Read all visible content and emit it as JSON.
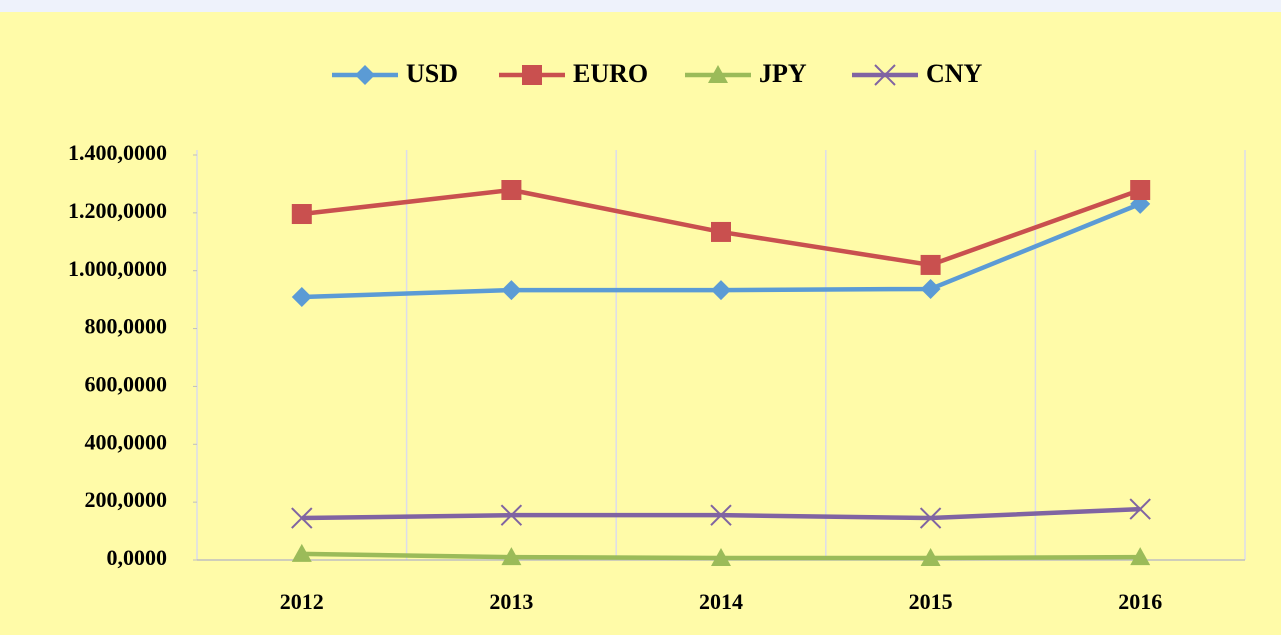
{
  "chart_data": {
    "type": "line",
    "categories": [
      "2012",
      "2013",
      "2014",
      "2015",
      "2016"
    ],
    "series": [
      {
        "name": "USD",
        "color": "#5b9bd5",
        "marker": "diamond",
        "values": [
          909,
          933,
          933,
          937,
          1231
        ]
      },
      {
        "name": "EURO",
        "color": "#c9504f",
        "marker": "square",
        "values": [
          1196,
          1279,
          1134,
          1020,
          1279
        ]
      },
      {
        "name": "JPY",
        "color": "#9bbb59",
        "marker": "triangle",
        "values": [
          21,
          10,
          7,
          7,
          10
        ]
      },
      {
        "name": "CNY",
        "color": "#8064a2",
        "marker": "x",
        "values": [
          145,
          155,
          155,
          145,
          176
        ]
      }
    ],
    "ylim": [
      0,
      1400
    ],
    "yticks": [
      {
        "value": 0,
        "label": "0,0000"
      },
      {
        "value": 200,
        "label": "200,0000"
      },
      {
        "value": 400,
        "label": "400,0000"
      },
      {
        "value": 600,
        "label": "600,0000"
      },
      {
        "value": 800,
        "label": "800,0000"
      },
      {
        "value": 1000,
        "label": "1.000,0000"
      },
      {
        "value": 1200,
        "label": "1.200,0000"
      },
      {
        "value": 1400,
        "label": "1.400,0000"
      }
    ],
    "legend": "top"
  }
}
